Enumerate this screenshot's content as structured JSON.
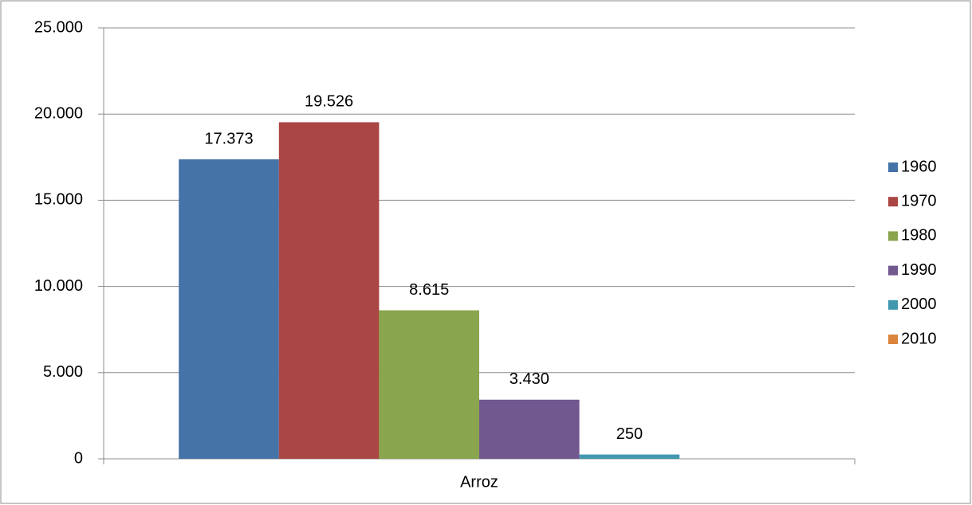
{
  "chart_data": {
    "type": "bar",
    "categories": [
      "Arroz"
    ],
    "series": [
      {
        "name": "1960",
        "color": "#4572a7",
        "values": [
          17373
        ],
        "value_labels": [
          "17.373"
        ]
      },
      {
        "name": "1970",
        "color": "#aa4643",
        "values": [
          19526
        ],
        "value_labels": [
          "19.526"
        ]
      },
      {
        "name": "1980",
        "color": "#89a54e",
        "values": [
          8615
        ],
        "value_labels": [
          "8.615"
        ]
      },
      {
        "name": "1990",
        "color": "#71588f",
        "values": [
          3430
        ],
        "value_labels": [
          "3.430"
        ]
      },
      {
        "name": "2000",
        "color": "#4198af",
        "values": [
          250
        ],
        "value_labels": [
          "250"
        ]
      },
      {
        "name": "2010",
        "color": "#db843d",
        "values": [
          null
        ],
        "value_labels": [
          null
        ]
      }
    ],
    "ylim": [
      0,
      25000
    ],
    "yticks": [
      0,
      {
        "value": 5000,
        "label": "5.000"
      },
      {
        "value": 10000,
        "label": "10.000"
      },
      {
        "value": 15000,
        "label": "15.000"
      },
      {
        "value": 20000,
        "label": "20.000"
      },
      {
        "value": 25000,
        "label": "25.000"
      }
    ],
    "grid": true,
    "legend": "right"
  }
}
